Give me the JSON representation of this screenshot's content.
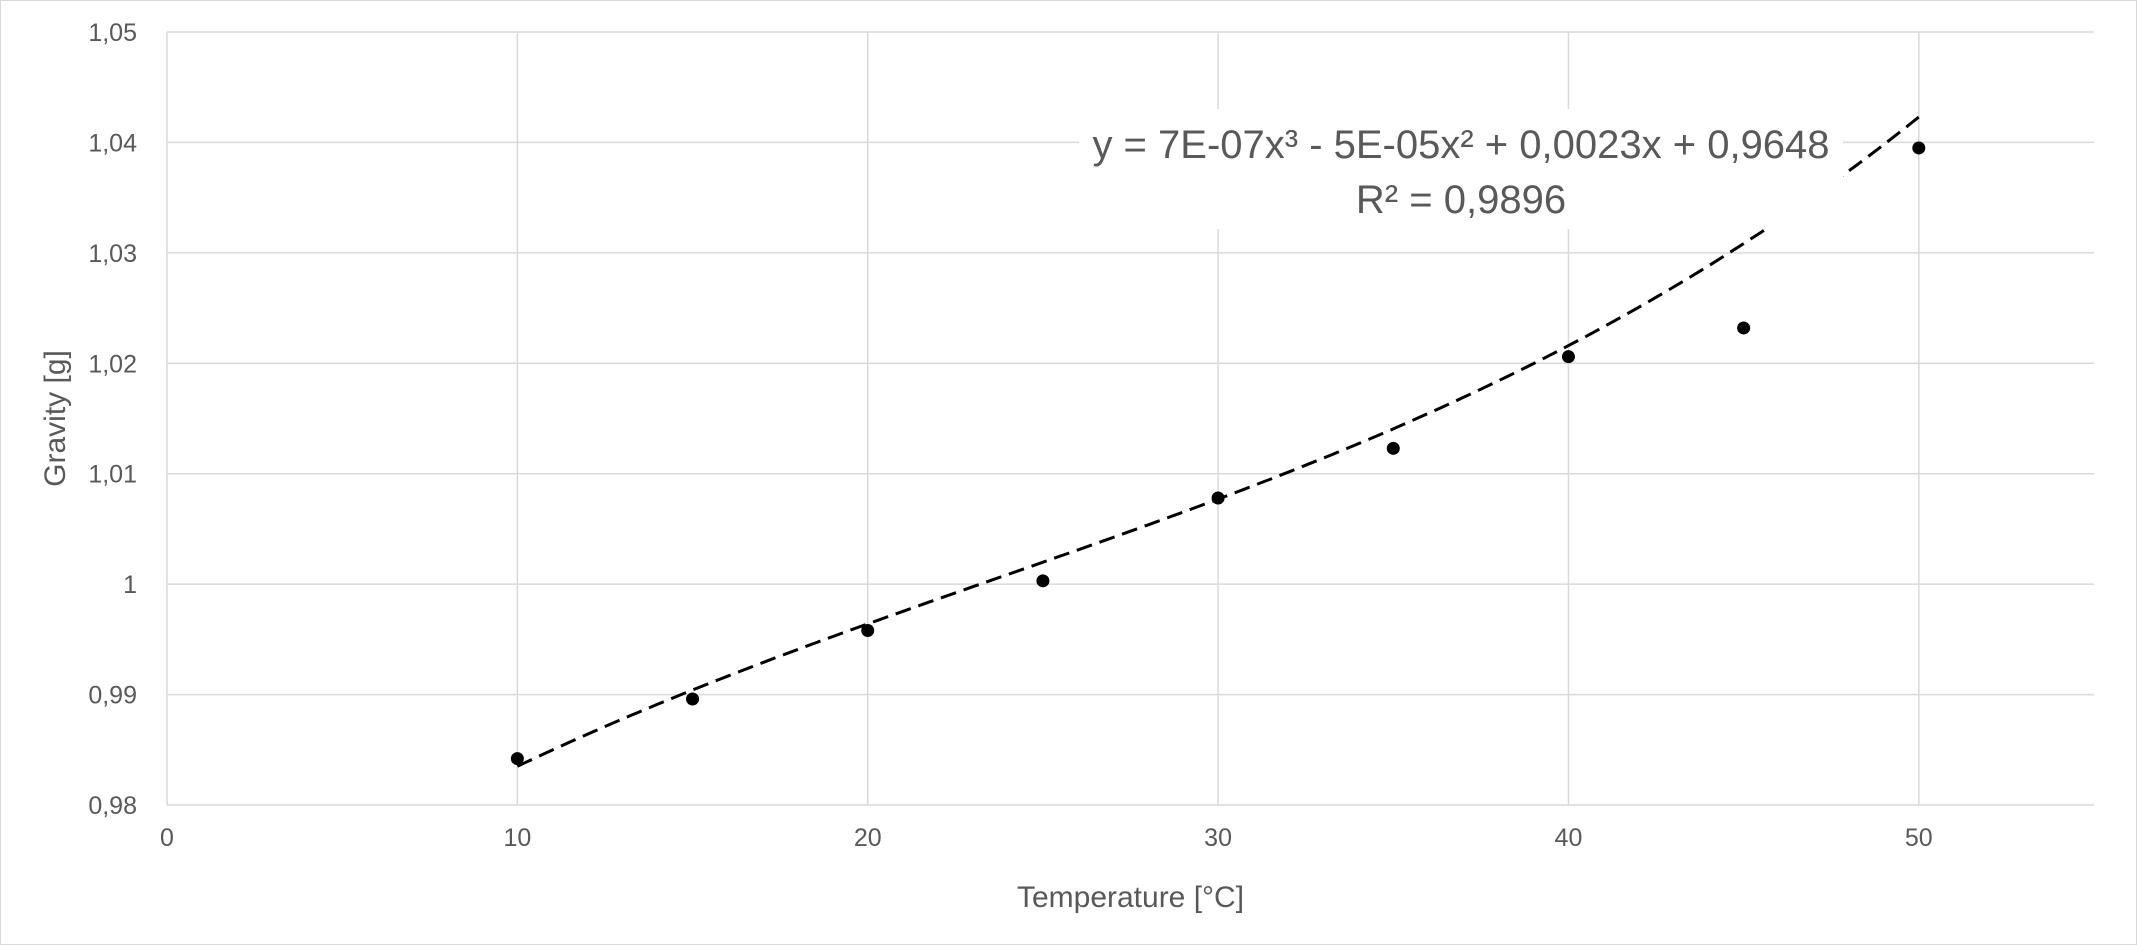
{
  "chart_data": {
    "type": "scatter",
    "title": "",
    "xlabel": "Temperature [°C]",
    "ylabel": "Gravity [g]",
    "xlim": [
      0,
      55
    ],
    "ylim": [
      0.98,
      1.05
    ],
    "x_ticks": [
      0,
      10,
      20,
      30,
      40,
      50
    ],
    "x_tick_labels": [
      "0",
      "10",
      "20",
      "30",
      "40",
      "50"
    ],
    "y_ticks": [
      0.98,
      0.99,
      1.0,
      1.01,
      1.02,
      1.03,
      1.04,
      1.05
    ],
    "y_tick_labels": [
      "0,98",
      "0,99",
      "1",
      "1,01",
      "1,02",
      "1,03",
      "1,04",
      "1,05"
    ],
    "grid": true,
    "legend": "none",
    "series": [
      {
        "x": [
          10,
          15,
          20,
          25,
          30,
          35,
          40,
          45,
          50
        ],
        "y": [
          0.9842,
          0.9896,
          0.9958,
          1.0003,
          1.0078,
          1.0123,
          1.0206,
          1.0232,
          1.0395
        ],
        "color": "#000000",
        "marker": "circle"
      }
    ],
    "trendline": {
      "type": "polynomial",
      "order": 3,
      "style": "dashed",
      "color": "#000000",
      "coefficients": [
        7e-07,
        -5e-05,
        0.0023,
        0.9648
      ],
      "x_range": [
        10,
        50
      ],
      "equation_label": "y = 7E-07x³ - 5E-05x² + 0,0023x + 0,9648",
      "r2_label": "R² = 0,9896"
    },
    "colors": {
      "grid": "#d9d9d9",
      "text": "#595959",
      "marker": "#000000"
    }
  }
}
